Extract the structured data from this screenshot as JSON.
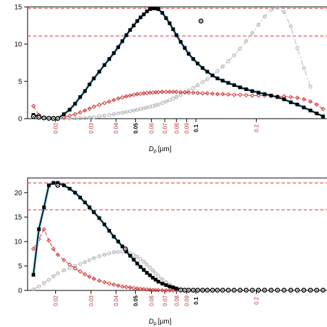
{
  "chart_data": [
    {
      "type": "scatter",
      "x_scale": "log",
      "xlim": [
        0.0145,
        0.45
      ],
      "ylim": [
        0,
        15
      ],
      "y_ticks": [
        0,
        5,
        10,
        15
      ],
      "x_ticks": [
        {
          "label": "0.02",
          "value": 0.02,
          "color": "#c03030",
          "weight": "normal"
        },
        {
          "label": "0.03",
          "value": 0.03,
          "color": "#c03030",
          "weight": "normal"
        },
        {
          "label": "0.04",
          "value": 0.04,
          "color": "#c03030",
          "weight": "normal"
        },
        {
          "label": "0.05",
          "value": 0.05,
          "color": "#000000",
          "weight": "bold"
        },
        {
          "label": "0.06",
          "value": 0.06,
          "color": "#c03030",
          "weight": "normal"
        },
        {
          "label": "0.07",
          "value": 0.07,
          "color": "#c03030",
          "weight": "normal"
        },
        {
          "label": "0.08",
          "value": 0.08,
          "color": "#c03030",
          "weight": "normal"
        },
        {
          "label": "0.09",
          "value": 0.09,
          "color": "#c03030",
          "weight": "normal"
        },
        {
          "label": "0.1",
          "value": 0.1,
          "color": "#000000",
          "weight": "bold"
        },
        {
          "label": "0.2",
          "value": 0.2,
          "color": "#c03030",
          "weight": "normal"
        }
      ],
      "xlabel_main": "D",
      "xlabel_sub": "p",
      "xlabel_unit": "[µm]",
      "hlines": [
        14.8,
        11.1
      ],
      "fit_color": "#87ceeb",
      "series": [
        {
          "style": "black-squares",
          "x": [
            0.0155,
            0.0165,
            0.0175,
            0.0185,
            0.0195,
            0.0205,
            0.022,
            0.0235,
            0.025,
            0.0265,
            0.028,
            0.0295,
            0.031,
            0.033,
            0.035,
            0.037,
            0.039,
            0.041,
            0.043,
            0.045,
            0.047,
            0.049,
            0.051,
            0.053,
            0.055,
            0.057,
            0.059,
            0.061,
            0.063,
            0.065,
            0.068,
            0.071,
            0.074,
            0.077,
            0.08,
            0.084,
            0.088,
            0.092,
            0.097,
            0.102,
            0.108,
            0.114,
            0.121,
            0.128,
            0.136,
            0.145,
            0.155,
            0.166,
            0.178,
            0.191,
            0.205,
            0.22,
            0.237,
            0.255,
            0.275,
            0.297,
            0.32,
            0.345,
            0.372,
            0.4,
            0.43
          ],
          "y": [
            0.5,
            0.3,
            0.1,
            0.05,
            0.03,
            0.05,
            0.6,
            1.2,
            2.0,
            2.9,
            3.7,
            4.6,
            5.4,
            6.3,
            7.2,
            8.0,
            8.8,
            9.6,
            10.4,
            11.2,
            11.9,
            12.5,
            13.1,
            13.6,
            14.0,
            14.4,
            14.7,
            14.8,
            14.8,
            14.7,
            14.2,
            13.5,
            12.8,
            12.0,
            11.2,
            10.3,
            9.5,
            8.7,
            8.0,
            7.4,
            6.8,
            6.3,
            5.8,
            5.4,
            5.1,
            4.8,
            4.5,
            4.2,
            3.95,
            3.7,
            3.5,
            3.3,
            3.1,
            2.9,
            2.6,
            2.2,
            1.9,
            1.5,
            1.1,
            0.7,
            0.3
          ]
        },
        {
          "style": "circles-black",
          "x": [
            0.0155,
            0.0165,
            0.0175,
            0.0185,
            0.0195,
            0.0205,
            0.106
          ],
          "y": [
            0.3,
            0.2,
            0.1,
            0.05,
            0.03,
            0.03,
            13.1
          ]
        },
        {
          "style": "red-diamonds",
          "x": [
            0.0155,
            0.0165,
            0.0175,
            0.0185,
            0.0195,
            0.0205,
            0.022,
            0.0235,
            0.025,
            0.0265,
            0.028,
            0.0295,
            0.031,
            0.033,
            0.035,
            0.037,
            0.039,
            0.041,
            0.043,
            0.045,
            0.047,
            0.049,
            0.051,
            0.053,
            0.055,
            0.057,
            0.059,
            0.061,
            0.063,
            0.065,
            0.068,
            0.071,
            0.074,
            0.077,
            0.08,
            0.084,
            0.088,
            0.092,
            0.097,
            0.102,
            0.108,
            0.114,
            0.121,
            0.128,
            0.136,
            0.145,
            0.155,
            0.166,
            0.178,
            0.191,
            0.205,
            0.22,
            0.237,
            0.255,
            0.275,
            0.297,
            0.32,
            0.345,
            0.372,
            0.4,
            0.43
          ],
          "y": [
            1.7,
            0.5,
            0.1,
            0.05,
            0.05,
            0.1,
            0.2,
            0.4,
            0.6,
            0.85,
            1.1,
            1.35,
            1.6,
            1.85,
            2.1,
            2.3,
            2.5,
            2.7,
            2.85,
            3.0,
            3.1,
            3.2,
            3.3,
            3.35,
            3.4,
            3.45,
            3.5,
            3.5,
            3.55,
            3.55,
            3.6,
            3.6,
            3.6,
            3.6,
            3.6,
            3.55,
            3.55,
            3.5,
            3.5,
            3.45,
            3.4,
            3.4,
            3.35,
            3.3,
            3.3,
            3.25,
            3.2,
            3.2,
            3.15,
            3.1,
            3.1,
            3.1,
            3.05,
            3.0,
            3.0,
            2.9,
            2.8,
            2.6,
            2.3,
            1.9,
            1.3
          ]
        },
        {
          "style": "grey-circles",
          "x": [
            0.0155,
            0.0165,
            0.0175,
            0.0185,
            0.0195,
            0.0205,
            0.022,
            0.0235,
            0.025,
            0.0265,
            0.028,
            0.0295,
            0.031,
            0.033,
            0.035,
            0.037,
            0.039,
            0.041,
            0.043,
            0.045,
            0.047,
            0.049,
            0.051,
            0.053,
            0.055,
            0.057,
            0.059,
            0.061,
            0.063,
            0.065,
            0.068,
            0.071,
            0.074,
            0.077,
            0.08,
            0.084,
            0.088,
            0.092,
            0.097,
            0.102,
            0.108,
            0.114,
            0.121,
            0.128,
            0.136,
            0.145,
            0.155,
            0.166,
            0.178,
            0.191,
            0.205,
            0.22,
            0.237,
            0.255,
            0.275,
            0.297,
            0.32,
            0.345,
            0.372
          ],
          "y": [
            0.3,
            0.2,
            0.1,
            0.05,
            0.03,
            0.03,
            0.03,
            0.03,
            0.05,
            0.08,
            0.1,
            0.15,
            0.2,
            0.3,
            0.4,
            0.5,
            0.6,
            0.7,
            0.8,
            0.9,
            1.0,
            1.1,
            1.2,
            1.3,
            1.4,
            1.5,
            1.6,
            1.7,
            1.8,
            1.9,
            2.1,
            2.3,
            2.5,
            2.7,
            2.9,
            3.2,
            3.5,
            3.8,
            4.1,
            4.5,
            4.9,
            5.3,
            5.8,
            6.4,
            7.0,
            7.7,
            8.5,
            9.4,
            10.4,
            11.5,
            12.6,
            13.7,
            14.6,
            14.9,
            14.3,
            12.4,
            9.5,
            6.8,
            4.3
          ]
        }
      ]
    },
    {
      "type": "scatter",
      "x_scale": "log",
      "xlim": [
        0.0145,
        0.45
      ],
      "ylim": [
        0,
        23
      ],
      "y_ticks": [
        0,
        5,
        10,
        15,
        20
      ],
      "x_ticks": [
        {
          "label": "0.02",
          "value": 0.02,
          "color": "#c03030",
          "weight": "normal"
        },
        {
          "label": "0.03",
          "value": 0.03,
          "color": "#c03030",
          "weight": "normal"
        },
        {
          "label": "0.04",
          "value": 0.04,
          "color": "#c03030",
          "weight": "normal"
        },
        {
          "label": "0.05",
          "value": 0.05,
          "color": "#000000",
          "weight": "bold"
        },
        {
          "label": "0.06",
          "value": 0.06,
          "color": "#c03030",
          "weight": "normal"
        },
        {
          "label": "0.07",
          "value": 0.07,
          "color": "#c03030",
          "weight": "normal"
        },
        {
          "label": "0.08",
          "value": 0.08,
          "color": "#c03030",
          "weight": "normal"
        },
        {
          "label": "0.09",
          "value": 0.09,
          "color": "#c03030",
          "weight": "normal"
        },
        {
          "label": "0.1",
          "value": 0.1,
          "color": "#000000",
          "weight": "bold"
        },
        {
          "label": "0.2",
          "value": 0.2,
          "color": "#c03030",
          "weight": "normal"
        }
      ],
      "xlabel_main": "D",
      "xlabel_sub": "p",
      "xlabel_unit": "[µm]",
      "hlines": [
        22.0,
        16.5
      ],
      "fit_color": "#87ceeb",
      "series": [
        {
          "style": "black-squares",
          "x": [
            0.0155,
            0.0165,
            0.0175,
            0.0185,
            0.0195,
            0.0205,
            0.022,
            0.0235,
            0.025,
            0.0265,
            0.028,
            0.0295,
            0.031,
            0.033,
            0.035,
            0.037,
            0.039,
            0.041,
            0.043,
            0.045,
            0.047,
            0.049,
            0.051,
            0.053,
            0.055,
            0.057,
            0.059,
            0.061,
            0.063,
            0.065,
            0.068,
            0.071,
            0.074,
            0.077,
            0.08,
            0.084
          ],
          "y": [
            3.2,
            12.5,
            17.0,
            21.5,
            22.0,
            22.0,
            21.5,
            20.8,
            20.0,
            19.0,
            18.0,
            17.0,
            16.0,
            14.8,
            13.5,
            12.2,
            11.0,
            10.0,
            9.0,
            8.0,
            7.1,
            6.3,
            5.5,
            4.8,
            4.2,
            3.6,
            3.1,
            2.6,
            2.2,
            1.8,
            1.4,
            1.1,
            0.8,
            0.6,
            0.4,
            0.2
          ]
        },
        {
          "style": "circles-black",
          "x": [
            0.0205,
            0.0445,
            0.084,
            0.088,
            0.092,
            0.097,
            0.102,
            0.108,
            0.114,
            0.121,
            0.128,
            0.136,
            0.145,
            0.155,
            0.166,
            0.178,
            0.191,
            0.205,
            0.22,
            0.237,
            0.255,
            0.275,
            0.297,
            0.32,
            0.345,
            0.372,
            0.4,
            0.43
          ],
          "y": [
            21.5,
            8.5,
            0.1,
            0.05,
            0.05,
            0.05,
            0.05,
            0.05,
            0.05,
            0.05,
            0.05,
            0.05,
            0.05,
            0.05,
            0.05,
            0.05,
            0.05,
            0.05,
            0.05,
            0.05,
            0.05,
            0.05,
            0.05,
            0.05,
            0.05,
            0.05,
            0.05,
            0.05
          ]
        },
        {
          "style": "red-diamonds",
          "x": [
            0.0155,
            0.0165,
            0.0175,
            0.0185,
            0.0195,
            0.0205,
            0.022,
            0.0235,
            0.025,
            0.0265,
            0.028,
            0.0295,
            0.031,
            0.033,
            0.035,
            0.037,
            0.039,
            0.041,
            0.043,
            0.045,
            0.047,
            0.049,
            0.051,
            0.053,
            0.055,
            0.057,
            0.059,
            0.061,
            0.063,
            0.065,
            0.068,
            0.071,
            0.074,
            0.077,
            0.08,
            0.084
          ],
          "y": [
            8.5,
            10.5,
            12.5,
            10.2,
            8.5,
            7.3,
            6.2,
            5.3,
            4.5,
            3.9,
            3.3,
            2.8,
            2.4,
            2.0,
            1.7,
            1.4,
            1.2,
            1.0,
            0.8,
            0.7,
            0.6,
            0.5,
            0.4,
            0.3,
            0.25,
            0.2,
            0.15,
            0.1,
            0.08,
            0.05,
            0.04,
            0.03,
            0.02,
            0.01,
            0.01,
            0.01
          ]
        },
        {
          "style": "grey-circles",
          "x": [
            0.0155,
            0.0165,
            0.0175,
            0.0185,
            0.0195,
            0.0205,
            0.022,
            0.0235,
            0.025,
            0.0265,
            0.028,
            0.0295,
            0.031,
            0.033,
            0.035,
            0.037,
            0.039,
            0.041,
            0.043,
            0.045,
            0.047,
            0.049,
            0.051,
            0.053,
            0.055,
            0.057,
            0.059,
            0.061,
            0.063,
            0.065,
            0.068,
            0.071,
            0.074,
            0.077,
            0.08,
            0.084
          ],
          "y": [
            0.2,
            0.8,
            1.5,
            2.2,
            2.9,
            3.5,
            4.1,
            4.6,
            5.0,
            5.4,
            5.8,
            6.2,
            6.6,
            7.0,
            7.3,
            7.6,
            7.8,
            7.9,
            7.9,
            7.8,
            7.6,
            7.3,
            6.9,
            6.4,
            5.9,
            5.3,
            4.7,
            4.1,
            3.5,
            2.9,
            2.3,
            1.7,
            1.2,
            0.8,
            0.4,
            0.1
          ]
        }
      ]
    }
  ]
}
